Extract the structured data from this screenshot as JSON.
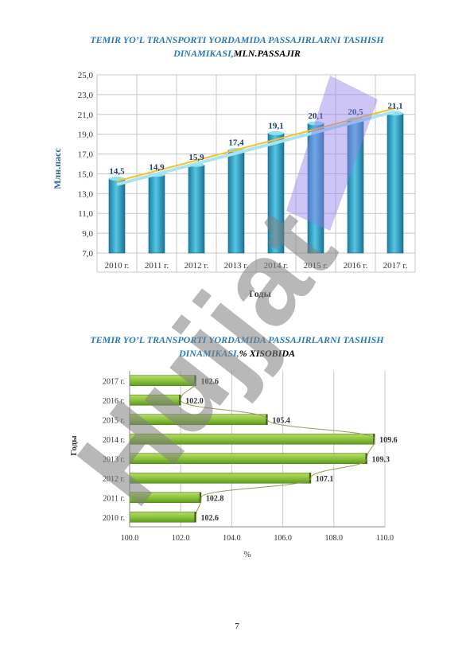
{
  "page_number": "7",
  "watermark": "Hujjat",
  "chart_data": [
    {
      "type": "bar",
      "title_main": "TEMIR YO’L TRANSPORTI YORDAMIDA PASSAJIRLARNI  TASHISH",
      "title_line2": "DINAMIKASI,",
      "title_unit": "MLN.PASSAJIR",
      "categories": [
        "2010 г.",
        "2011 г.",
        "2012 г.",
        "2013 г.",
        "2014 г.",
        "2015 г.",
        "2016 г.",
        "2017 г."
      ],
      "values": [
        14.5,
        14.9,
        15.9,
        17.4,
        19.1,
        20.1,
        20.5,
        21.1
      ],
      "value_labels": [
        "14,5",
        "14,9",
        "15,9",
        "17,4",
        "19,1",
        "20,1",
        "20,5",
        "21,1"
      ],
      "xlabel": "Годы",
      "ylabel": "Млн.пасс",
      "ylim": [
        7,
        25
      ],
      "yticks": [
        "7,0",
        "9,0",
        "11,0",
        "13,0",
        "15,0",
        "17,0",
        "19,0",
        "21,0",
        "23,0",
        "25,0"
      ],
      "trendline": true,
      "grid": true,
      "colors": {
        "bar": "#2ea7c9",
        "trend": "#f2c232",
        "grid": "#c8c8c8"
      }
    },
    {
      "type": "bar",
      "orientation": "horizontal",
      "title_main": "TEMIR YO’L TRANSPORTI YORDAMIDA PASSAJIRLARNI  TASHISH",
      "title_line2": "DINAMIKASI,",
      "title_unit": "% XISOBIDA",
      "categories": [
        "2017 г.",
        "2016 г.",
        "2015 г.",
        "2014 г.",
        "2013 г.",
        "2012 г.",
        "2011 г.",
        "2010 г."
      ],
      "values": [
        102.6,
        102.0,
        105.4,
        109.6,
        109.3,
        107.1,
        102.8,
        102.6
      ],
      "value_labels": [
        "102.6",
        "102.0",
        "105.4",
        "109.6",
        "109.3",
        "107.1",
        "102.8",
        "102.6"
      ],
      "xlabel": "%",
      "ylabel": "Годы",
      "xlim": [
        100,
        110
      ],
      "xticks": [
        "100.0",
        "102.0",
        "104.0",
        "106.0",
        "108.0",
        "110.0"
      ],
      "grid": true,
      "colors": {
        "bar": "#8cc43c",
        "curve": "#9a9a5a",
        "grid": "#c8c8c8"
      }
    }
  ]
}
